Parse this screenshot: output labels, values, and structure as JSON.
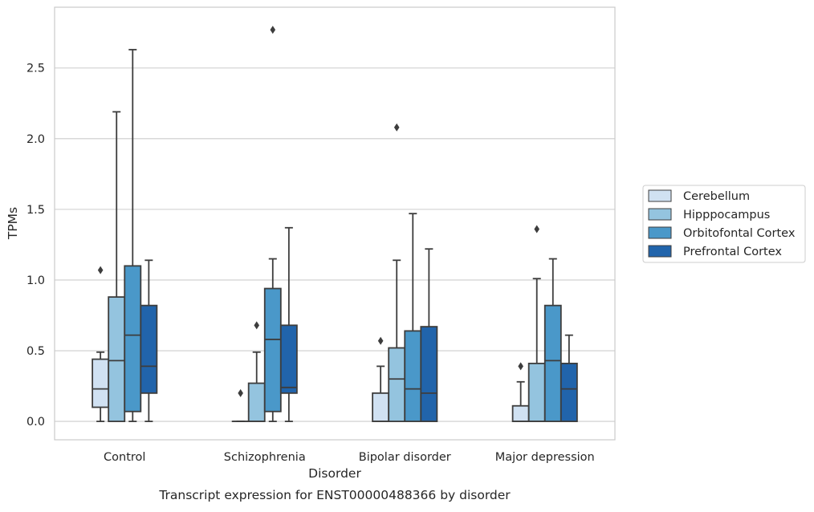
{
  "chart_data": {
    "type": "boxplot",
    "caption": "Transcript expression for ENST00000488366 by disorder",
    "xlabel": "Disorder",
    "ylabel": "TPMs",
    "ylim": [
      -0.13,
      2.93
    ],
    "yticks": [
      0.0,
      0.5,
      1.0,
      1.5,
      2.0,
      2.5
    ],
    "ytick_labels": [
      "0.0",
      "0.5",
      "1.0",
      "1.5",
      "2.0",
      "2.5"
    ],
    "grid": "horizontal",
    "legend_position": "right-center",
    "categories": [
      "Control",
      "Schizophrenia",
      "Bipolar disorder",
      "Major depression"
    ],
    "series": [
      {
        "name": "Cerebellum",
        "color": "#d0e1f2",
        "boxes": [
          {
            "q1": 0.1,
            "median": 0.23,
            "q3": 0.44,
            "whisker_low": 0.0,
            "whisker_high": 0.49,
            "outliers": [
              1.07
            ]
          },
          {
            "q1": 0.0,
            "median": 0.0,
            "q3": 0.0,
            "whisker_low": 0.0,
            "whisker_high": 0.0,
            "outliers": [
              0.2
            ]
          },
          {
            "q1": 0.0,
            "median": 0.0,
            "q3": 0.2,
            "whisker_low": 0.0,
            "whisker_high": 0.39,
            "outliers": [
              0.57
            ]
          },
          {
            "q1": 0.0,
            "median": 0.0,
            "q3": 0.11,
            "whisker_low": 0.0,
            "whisker_high": 0.28,
            "outliers": [
              0.39
            ]
          }
        ]
      },
      {
        "name": "Hipppocampus",
        "color": "#94c4df",
        "boxes": [
          {
            "q1": 0.0,
            "median": 0.43,
            "q3": 0.88,
            "whisker_low": 0.0,
            "whisker_high": 2.19,
            "outliers": []
          },
          {
            "q1": 0.0,
            "median": 0.0,
            "q3": 0.27,
            "whisker_low": 0.0,
            "whisker_high": 0.49,
            "outliers": [
              0.68
            ]
          },
          {
            "q1": 0.0,
            "median": 0.3,
            "q3": 0.52,
            "whisker_low": 0.0,
            "whisker_high": 1.14,
            "outliers": [
              2.08
            ]
          },
          {
            "q1": 0.0,
            "median": 0.0,
            "q3": 0.41,
            "whisker_low": 0.0,
            "whisker_high": 1.01,
            "outliers": [
              1.36
            ]
          }
        ]
      },
      {
        "name": "Orbitofontal Cortex",
        "color": "#4a98c9",
        "boxes": [
          {
            "q1": 0.07,
            "median": 0.61,
            "q3": 1.1,
            "whisker_low": 0.0,
            "whisker_high": 2.63,
            "outliers": []
          },
          {
            "q1": 0.07,
            "median": 0.58,
            "q3": 0.94,
            "whisker_low": 0.0,
            "whisker_high": 1.15,
            "outliers": [
              2.77
            ]
          },
          {
            "q1": 0.0,
            "median": 0.23,
            "q3": 0.64,
            "whisker_low": 0.0,
            "whisker_high": 1.47,
            "outliers": []
          },
          {
            "q1": 0.0,
            "median": 0.43,
            "q3": 0.82,
            "whisker_low": 0.0,
            "whisker_high": 1.15,
            "outliers": []
          }
        ]
      },
      {
        "name": "Prefrontal Cortex",
        "color": "#2164ab",
        "boxes": [
          {
            "q1": 0.2,
            "median": 0.39,
            "q3": 0.82,
            "whisker_low": 0.0,
            "whisker_high": 1.14,
            "outliers": []
          },
          {
            "q1": 0.2,
            "median": 0.24,
            "q3": 0.68,
            "whisker_low": 0.0,
            "whisker_high": 1.37,
            "outliers": []
          },
          {
            "q1": 0.0,
            "median": 0.2,
            "q3": 0.67,
            "whisker_low": 0.0,
            "whisker_high": 1.22,
            "outliers": []
          },
          {
            "q1": 0.0,
            "median": 0.23,
            "q3": 0.41,
            "whisker_low": 0.0,
            "whisker_high": 0.61,
            "outliers": []
          }
        ]
      }
    ]
  }
}
